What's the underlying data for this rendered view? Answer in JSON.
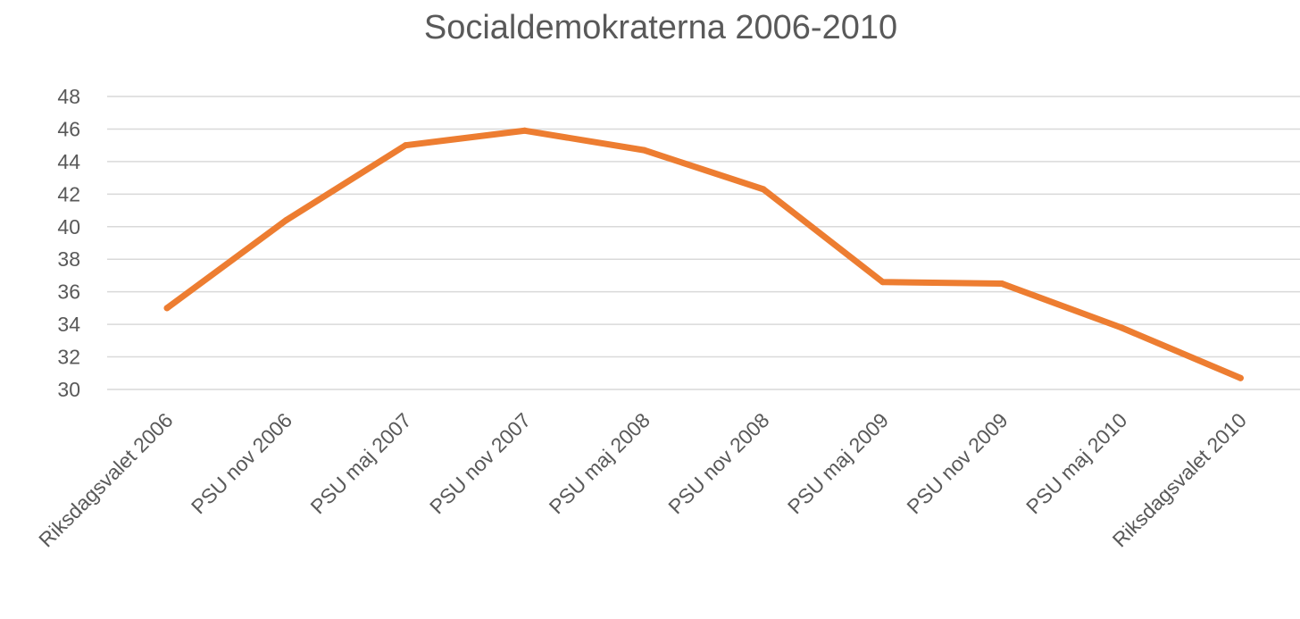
{
  "chart_data": {
    "type": "line",
    "title": "Socialdemokraterna 2006-2010",
    "xlabel": "",
    "ylabel": "",
    "categories": [
      "Riksdagsvalet 2006",
      "PSU nov 2006",
      "PSU maj 2007",
      "PSU nov 2007",
      "PSU maj 2008",
      "PSU nov 2008",
      "PSU maj 2009",
      "PSU nov 2009",
      "PSU maj 2010",
      "Riksdagsvalet 2010"
    ],
    "series": [
      {
        "values": [
          35.0,
          40.4,
          45.0,
          45.9,
          44.7,
          42.3,
          36.6,
          36.5,
          33.8,
          30.7
        ],
        "color": "#ed7d31"
      }
    ],
    "ylim": [
      30,
      48
    ],
    "yticks": [
      30,
      32,
      34,
      36,
      38,
      40,
      42,
      44,
      46,
      48
    ],
    "grid": true,
    "legend": "none",
    "colors": {
      "gridline": "#d9d9d9",
      "text": "#595959"
    }
  }
}
